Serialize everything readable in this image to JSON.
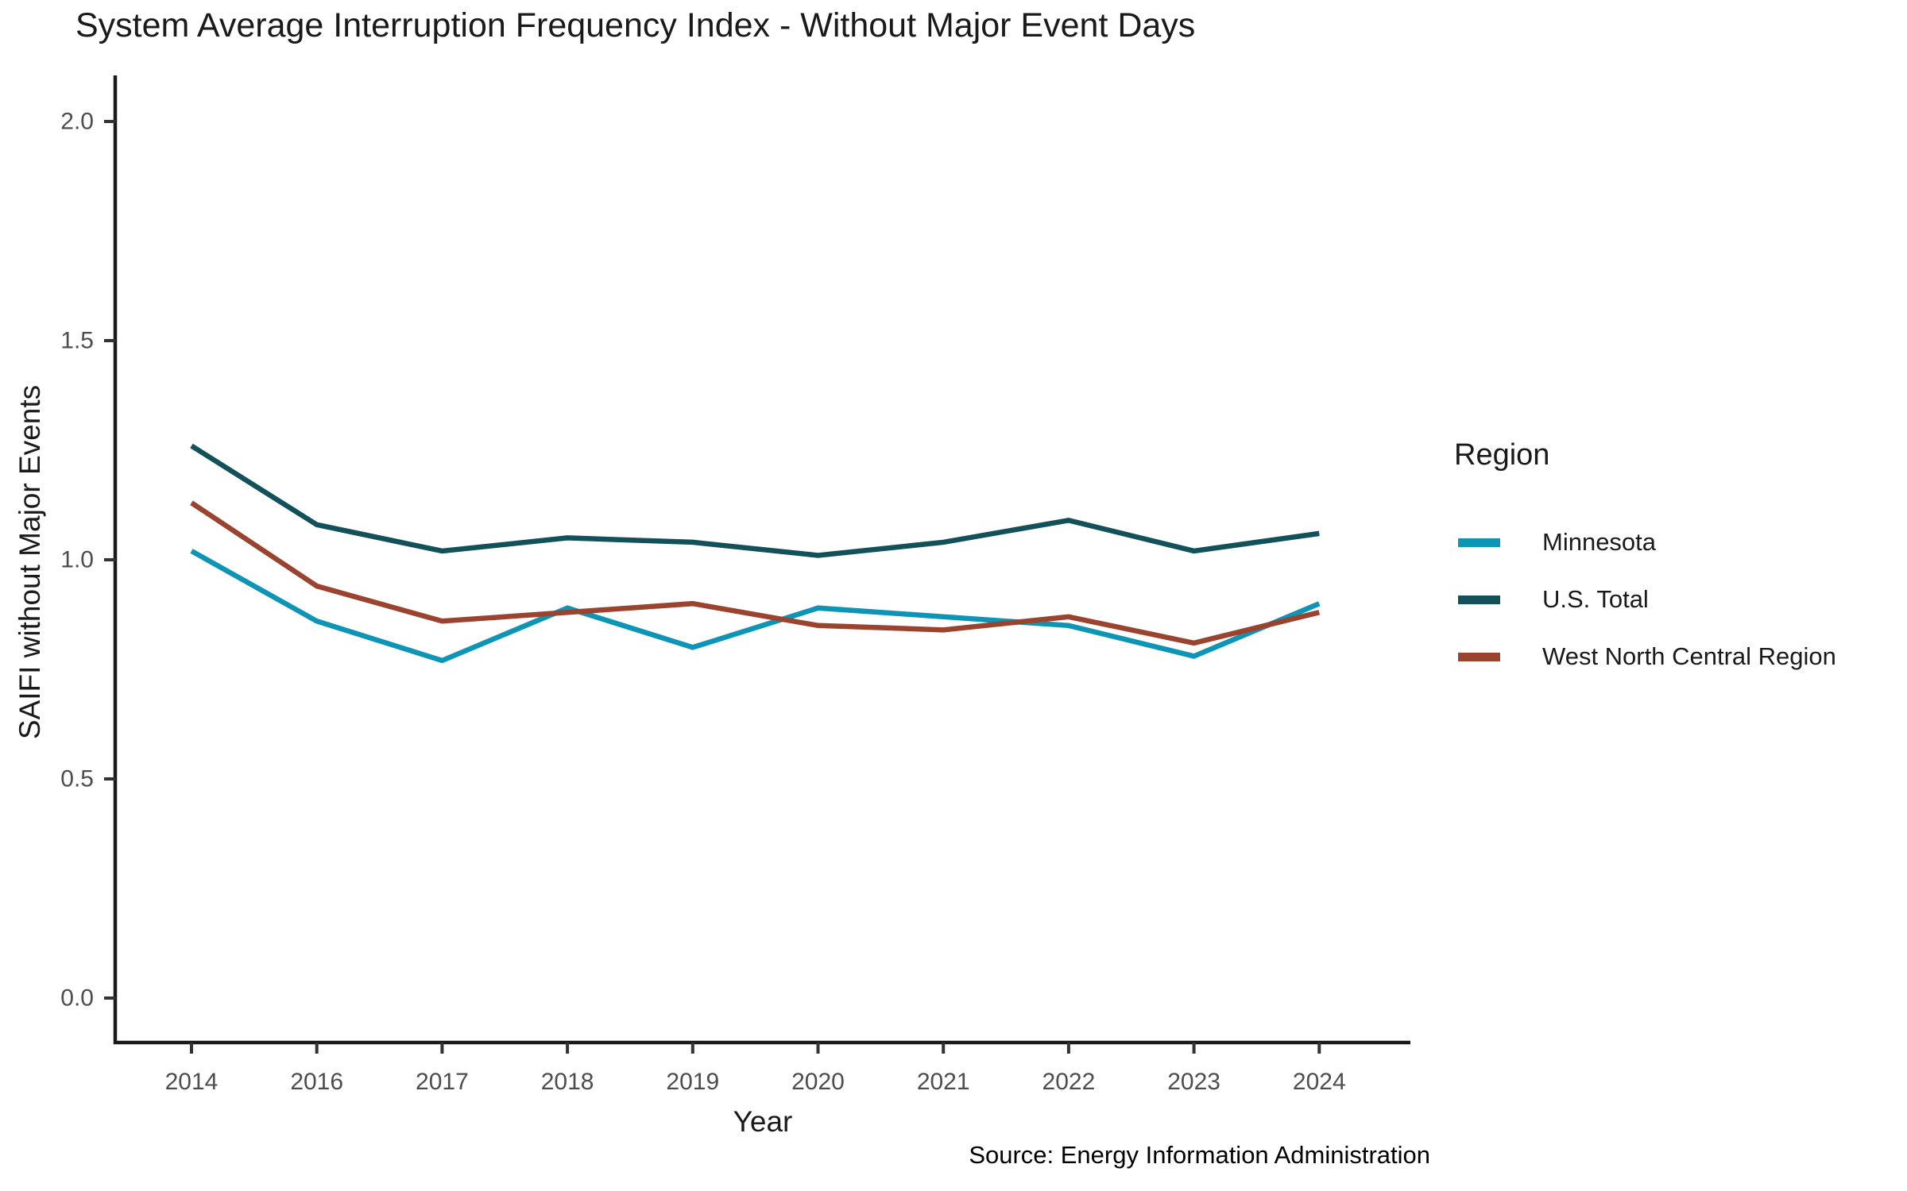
{
  "title": "System Average Interruption Frequency Index - Without Major Event Days",
  "source": "Source: Energy Information Administration",
  "legend": {
    "title": "Region"
  },
  "chart_data": {
    "type": "line",
    "title": "System Average Interruption Frequency Index - Without Major Event Days",
    "xlabel": "Year",
    "ylabel": "SAIFI without Major Events",
    "legend_title": "Region",
    "legend_position": "right",
    "grid": false,
    "source": "Source: Energy Information Administration",
    "categories": [
      "2014",
      "2016",
      "2017",
      "2018",
      "2019",
      "2020",
      "2021",
      "2022",
      "2023",
      "2024"
    ],
    "yticks": [
      0.0,
      0.5,
      1.0,
      1.5,
      2.0
    ],
    "ylim": [
      0.0,
      2.0
    ],
    "series": [
      {
        "name": "Minnesota",
        "color": "#0E94B5",
        "values": [
          1.02,
          0.86,
          0.77,
          0.89,
          0.8,
          0.89,
          0.87,
          0.85,
          0.78,
          0.9
        ]
      },
      {
        "name": "U.S. Total",
        "color": "#12505A",
        "values": [
          1.26,
          1.08,
          1.02,
          1.05,
          1.04,
          1.01,
          1.04,
          1.09,
          1.02,
          1.06
        ]
      },
      {
        "name": "West North Central Region",
        "color": "#9A432F",
        "values": [
          1.13,
          0.94,
          0.86,
          0.88,
          0.9,
          0.85,
          0.84,
          0.87,
          0.81,
          0.88
        ]
      }
    ]
  }
}
